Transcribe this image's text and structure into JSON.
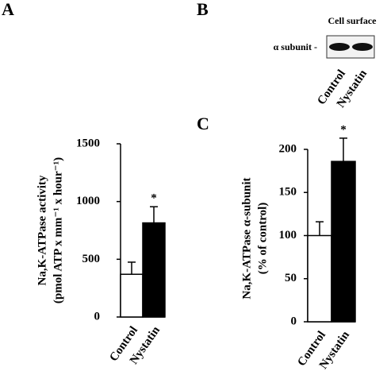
{
  "chart_data": [
    {
      "type": "bar",
      "label": "A",
      "ylabel": [
        "Na,K-ATPase activity",
        "(pmol ATP x mm⁻¹ x hour⁻¹)"
      ],
      "categories": [
        "Control",
        "Nystatin"
      ],
      "values": [
        370,
        815
      ],
      "errors": [
        105,
        140
      ],
      "colors": [
        "#ffffff",
        "#000000"
      ],
      "significance": "*",
      "ylim": [
        0,
        1500
      ],
      "yticks": [
        0,
        500,
        1000,
        1500
      ]
    },
    {
      "type": "bar",
      "label": "C",
      "ylabel": [
        "Na,K-ATPase α-subunit",
        "(% of control)"
      ],
      "categories": [
        "Control",
        "Nystatin"
      ],
      "values": [
        100,
        186
      ],
      "errors": [
        16,
        27
      ],
      "colors": [
        "#ffffff",
        "#000000"
      ],
      "significance": "*",
      "ylim": [
        0,
        200
      ],
      "yticks": [
        0,
        50,
        100,
        150,
        200
      ]
    }
  ],
  "blot": {
    "label": "B",
    "title": "Cell surface",
    "band_label": "α subunit -",
    "lanes": [
      "Control",
      "Nystatin"
    ]
  }
}
